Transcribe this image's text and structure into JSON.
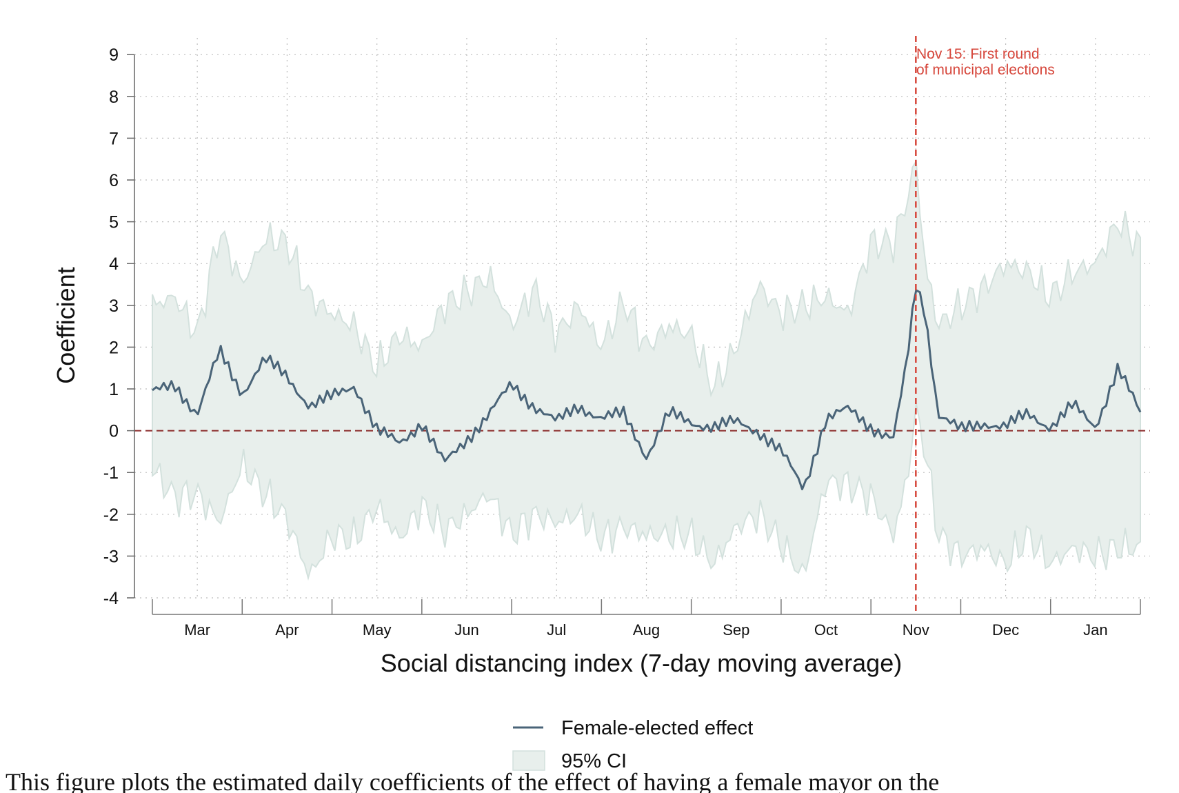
{
  "chart_data": {
    "type": "line",
    "title": "",
    "xlabel": "Social distancing index (7-day moving average)",
    "ylabel": "Coefficient",
    "ylim": [
      -4,
      9
    ],
    "yticks": [
      -4,
      -3,
      -2,
      -1,
      0,
      1,
      2,
      3,
      4,
      5,
      6,
      7,
      8,
      9
    ],
    "x_unit": "month (fraction of Mar–Jan span, 0 = start of Mar, 11 = end of Jan)",
    "months": [
      "Mar",
      "Apr",
      "May",
      "Jun",
      "Jul",
      "Aug",
      "Sep",
      "Oct",
      "Nov",
      "Dec",
      "Jan"
    ],
    "grid": true,
    "reference_line": {
      "y": 0,
      "style": "dashed",
      "color": "#8b2a2a"
    },
    "event_line": {
      "x": 8.5,
      "color": "#d6453a",
      "label_line1": "Nov 15: First round",
      "label_line2": "of municipal elections"
    },
    "legend": {
      "placement": "bottom-center",
      "entries": [
        "Female-elected effect",
        "95% CI"
      ]
    },
    "colors": {
      "line": "#4a6478",
      "band": "#e8efec",
      "band_edge": "#d3e1dd",
      "grid": "#bcbcbc"
    },
    "series": [
      {
        "name": "Female-elected effect",
        "x": [
          0.0,
          0.25,
          0.5,
          0.75,
          1.0,
          1.25,
          1.5,
          1.75,
          2.0,
          2.25,
          2.5,
          2.75,
          3.0,
          3.25,
          3.5,
          3.75,
          4.0,
          4.25,
          4.5,
          4.75,
          5.0,
          5.25,
          5.5,
          5.75,
          6.0,
          6.25,
          6.5,
          6.75,
          7.0,
          7.25,
          7.5,
          7.75,
          8.0,
          8.25,
          8.4,
          8.5,
          8.6,
          8.75,
          9.0,
          9.25,
          9.5,
          9.75,
          10.0,
          10.25,
          10.5,
          10.75,
          11.0
        ],
        "y": [
          0.9,
          1.1,
          0.4,
          1.9,
          0.9,
          1.7,
          1.3,
          0.6,
          0.8,
          1.1,
          0.0,
          -0.3,
          0.2,
          -0.8,
          -0.2,
          0.4,
          1.1,
          0.6,
          0.2,
          0.6,
          0.3,
          0.4,
          -0.6,
          0.4,
          0.2,
          0.1,
          0.2,
          0.0,
          -0.5,
          -1.4,
          0.3,
          0.5,
          0.1,
          -0.2,
          1.6,
          3.5,
          2.9,
          0.4,
          0.0,
          0.2,
          0.1,
          0.4,
          0.1,
          0.6,
          0.1,
          1.5,
          0.4
        ],
        "lower": [
          -0.9,
          -1.6,
          -1.5,
          -2.2,
          -0.8,
          -1.5,
          -2.1,
          -3.5,
          -2.5,
          -2.6,
          -1.8,
          -2.6,
          -1.8,
          -2.4,
          -2.0,
          -1.5,
          -2.5,
          -2.0,
          -2.2,
          -2.0,
          -2.6,
          -2.3,
          -2.5,
          -2.5,
          -2.5,
          -3.2,
          -2.3,
          -2.0,
          -2.7,
          -3.5,
          -1.2,
          -1.3,
          -1.6,
          -2.5,
          -1.2,
          0.5,
          -0.4,
          -2.5,
          -3.0,
          -2.8,
          -3.2,
          -2.5,
          -3.2,
          -2.8,
          -3.0,
          -2.8,
          -2.8
        ],
        "upper": [
          3.0,
          3.2,
          2.3,
          4.8,
          3.5,
          4.6,
          4.5,
          3.2,
          2.8,
          2.5,
          1.5,
          2.3,
          2.0,
          3.0,
          3.3,
          3.7,
          2.5,
          3.4,
          2.3,
          3.0,
          2.0,
          3.1,
          2.0,
          2.5,
          2.3,
          1.0,
          2.0,
          3.5,
          2.8,
          3.0,
          3.2,
          2.8,
          4.5,
          4.5,
          5.5,
          6.5,
          4.0,
          2.5,
          3.0,
          3.4,
          4.0,
          3.8,
          3.2,
          3.8,
          4.0,
          5.0,
          4.4
        ]
      }
    ]
  },
  "caption": {
    "text": "This figure plots the estimated daily coefficients of the effect of having a female mayor on the"
  }
}
